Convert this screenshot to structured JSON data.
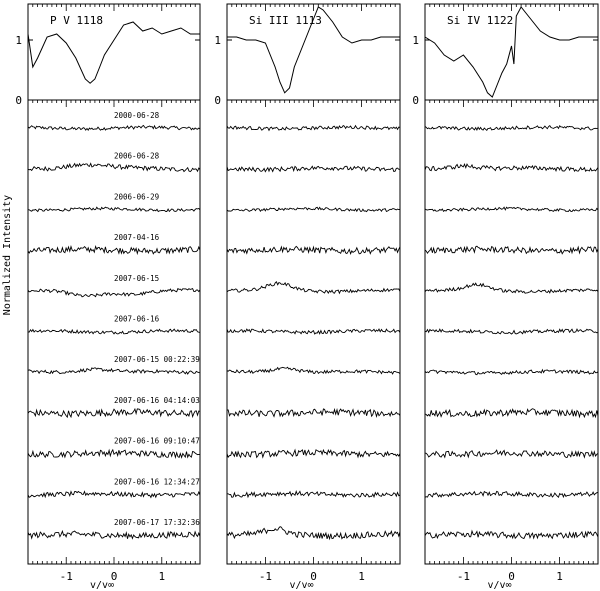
{
  "figure": {
    "ylabel": "Normalized Intensity",
    "xlabel": "v/v∞"
  },
  "chart_data": {
    "type": "line",
    "description": "Upper row: mean line profiles; lower rows: residual spectra per observation epoch for three wind lines.",
    "panels": [
      {
        "title": "P V 1118",
        "xlim": [
          -1.8,
          1.8
        ],
        "xticks": [
          -1,
          0,
          1
        ],
        "mean_profile": {
          "ylim": [
            0,
            1.6
          ],
          "yticks": [
            0,
            1
          ],
          "x": [
            -1.8,
            -1.7,
            -1.6,
            -1.4,
            -1.2,
            -1.0,
            -0.8,
            -0.6,
            -0.5,
            -0.4,
            -0.3,
            -0.2,
            0.0,
            0.2,
            0.4,
            0.6,
            0.8,
            1.0,
            1.2,
            1.4,
            1.6,
            1.8
          ],
          "y": [
            1.1,
            0.55,
            0.7,
            1.05,
            1.1,
            0.95,
            0.7,
            0.35,
            0.28,
            0.35,
            0.55,
            0.75,
            1.0,
            1.25,
            1.3,
            1.15,
            1.2,
            1.1,
            1.15,
            1.2,
            1.1,
            1.1
          ]
        },
        "residual_dips": [
          {
            "date_index": 4,
            "center": -0.6,
            "width": 0.5,
            "amp": -0.4
          },
          {
            "date_index": 4,
            "center": 0.4,
            "width": 0.4,
            "amp": -0.2
          },
          {
            "date_index": 6,
            "center": -0.4,
            "width": 0.5,
            "amp": 0.25
          },
          {
            "date_index": 1,
            "center": -0.6,
            "width": 0.6,
            "amp": 0.3
          }
        ]
      },
      {
        "title": "Si III 1113",
        "xlim": [
          -1.8,
          1.8
        ],
        "xticks": [
          -1,
          0,
          1
        ],
        "mean_profile": {
          "ylim": [
            0,
            1.6
          ],
          "yticks": [
            0,
            1
          ],
          "x": [
            -1.8,
            -1.6,
            -1.4,
            -1.2,
            -1.0,
            -0.8,
            -0.7,
            -0.6,
            -0.5,
            -0.4,
            -0.2,
            0.0,
            0.1,
            0.2,
            0.4,
            0.6,
            0.8,
            1.0,
            1.2,
            1.4,
            1.6,
            1.8
          ],
          "y": [
            1.05,
            1.05,
            1.0,
            1.0,
            0.95,
            0.55,
            0.3,
            0.12,
            0.2,
            0.55,
            0.95,
            1.35,
            1.55,
            1.5,
            1.3,
            1.05,
            0.95,
            1.0,
            1.0,
            1.05,
            1.05,
            1.05
          ]
        },
        "residual_dips": [
          {
            "date_index": 4,
            "center": -0.7,
            "width": 0.35,
            "amp": 0.5
          },
          {
            "date_index": 6,
            "center": -0.6,
            "width": 0.4,
            "amp": 0.3
          },
          {
            "date_index": 10,
            "center": -0.8,
            "width": 0.3,
            "amp": 0.4
          }
        ]
      },
      {
        "title": "Si IV 1122",
        "xlim": [
          -1.8,
          1.8
        ],
        "xticks": [
          -1,
          0,
          1
        ],
        "mean_profile": {
          "ylim": [
            0,
            1.6
          ],
          "yticks": [
            0,
            1
          ],
          "x": [
            -1.8,
            -1.6,
            -1.4,
            -1.2,
            -1.0,
            -0.8,
            -0.6,
            -0.5,
            -0.4,
            -0.3,
            -0.2,
            -0.1,
            0.0,
            0.05,
            0.1,
            0.2,
            0.4,
            0.6,
            0.8,
            1.0,
            1.2,
            1.4,
            1.6,
            1.8
          ],
          "y": [
            1.05,
            0.95,
            0.75,
            0.65,
            0.75,
            0.55,
            0.3,
            0.12,
            0.05,
            0.25,
            0.45,
            0.6,
            0.9,
            0.6,
            1.4,
            1.55,
            1.35,
            1.15,
            1.05,
            1.0,
            1.0,
            1.05,
            1.05,
            1.05
          ]
        },
        "residual_dips": [
          {
            "date_index": 4,
            "center": -0.7,
            "width": 0.35,
            "amp": 0.4
          },
          {
            "date_index": 1,
            "center": -1.0,
            "width": 0.4,
            "amp": 0.25
          }
        ]
      }
    ],
    "dates": [
      "2000-06-28",
      "2006-06-28",
      "2006-06-29",
      "2007-04-16",
      "2007-06-15",
      "2007-06-16",
      "2007-06-15 00:22:39",
      "2007-06-16 04:14:03",
      "2007-06-16 09:10:47",
      "2007-06-16 12:34:27",
      "2007-06-17 17:32:36"
    ],
    "residual_noise": [
      0.12,
      0.16,
      0.1,
      0.22,
      0.12,
      0.12,
      0.12,
      0.24,
      0.22,
      0.16,
      0.22
    ]
  }
}
